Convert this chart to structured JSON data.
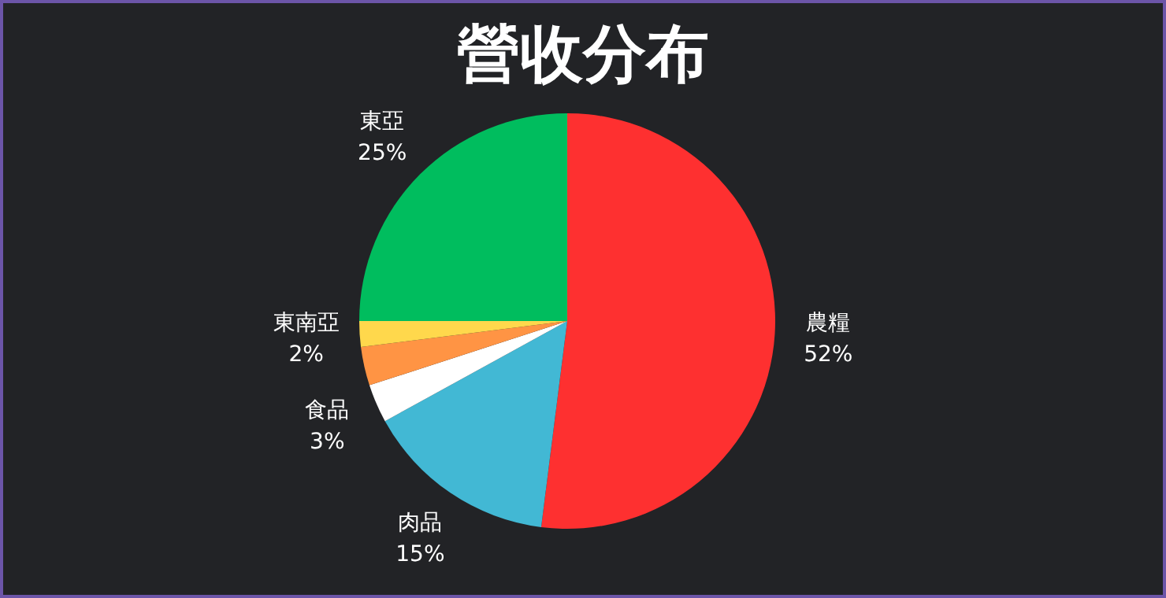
{
  "chart_data": {
    "type": "pie",
    "title": "營收分布",
    "categories": [
      "農糧",
      "肉品",
      "食品",
      null,
      "東南亞",
      "東亞"
    ],
    "values": [
      52,
      15,
      3,
      3,
      2,
      25
    ],
    "colors": [
      "#fe3030",
      "#42b8d4",
      "#ffffff",
      "#ff9444",
      "#ffd84c",
      "#00bd5e"
    ],
    "value_labels": [
      "52%",
      "15%",
      "3%",
      null,
      "2%",
      "25%"
    ]
  }
}
